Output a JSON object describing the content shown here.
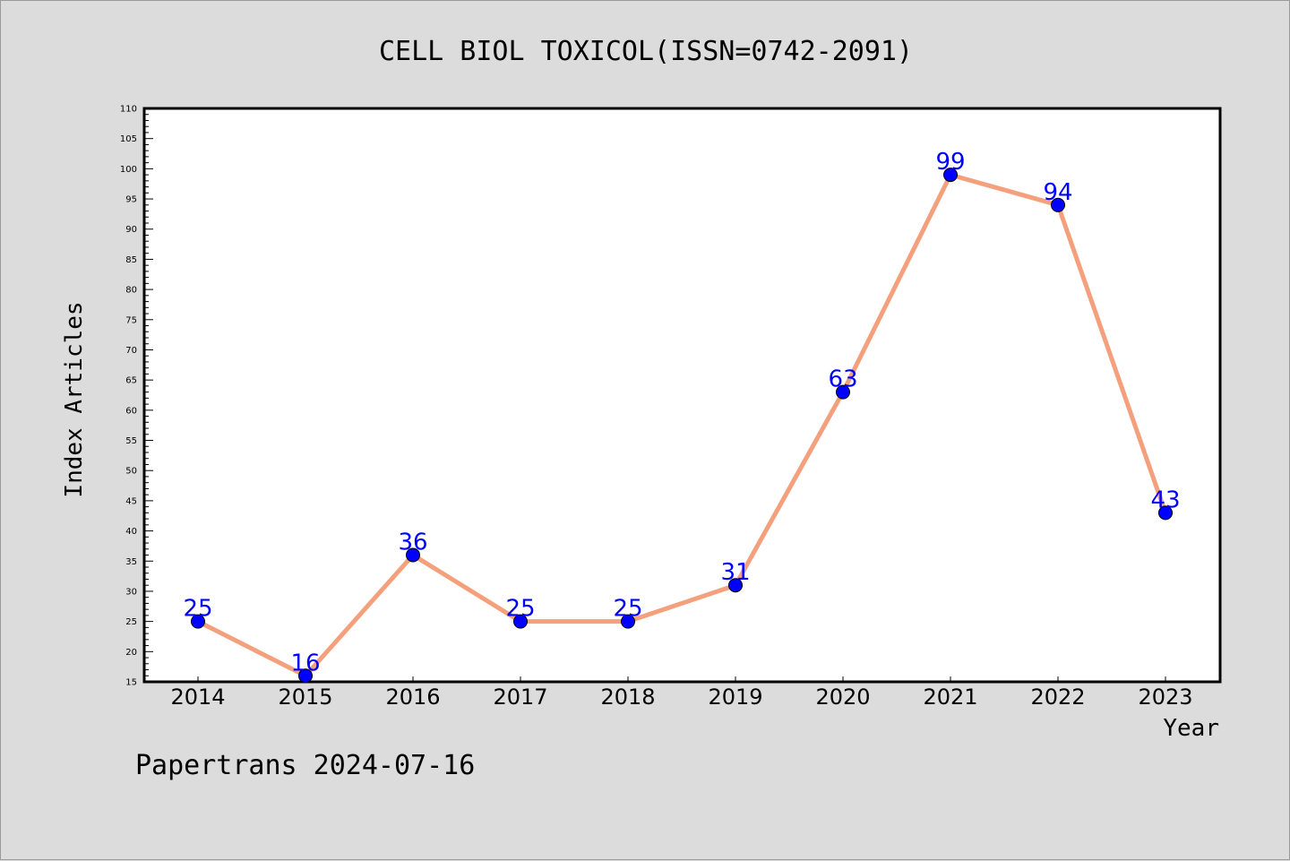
{
  "chart_data": {
    "type": "line",
    "title": "CELL BIOL TOXICOL(ISSN=0742-2091)",
    "xlabel": "Year",
    "ylabel": "Index Articles",
    "categories": [
      "2014",
      "2015",
      "2016",
      "2017",
      "2018",
      "2019",
      "2020",
      "2021",
      "2022",
      "2023"
    ],
    "values": [
      25,
      16,
      36,
      25,
      25,
      31,
      63,
      99,
      94,
      43
    ],
    "ylim": [
      15,
      110
    ],
    "y_ticks": [
      15,
      20,
      25,
      30,
      35,
      40,
      45,
      50,
      55,
      60,
      65,
      70,
      75,
      80,
      85,
      90,
      95,
      100,
      105,
      110
    ],
    "grid": false,
    "line_color": "#f4a07c",
    "marker_color": "#0000ff",
    "label_color": "#0000ff"
  },
  "footer": {
    "text": "Papertrans 2024-07-16"
  }
}
